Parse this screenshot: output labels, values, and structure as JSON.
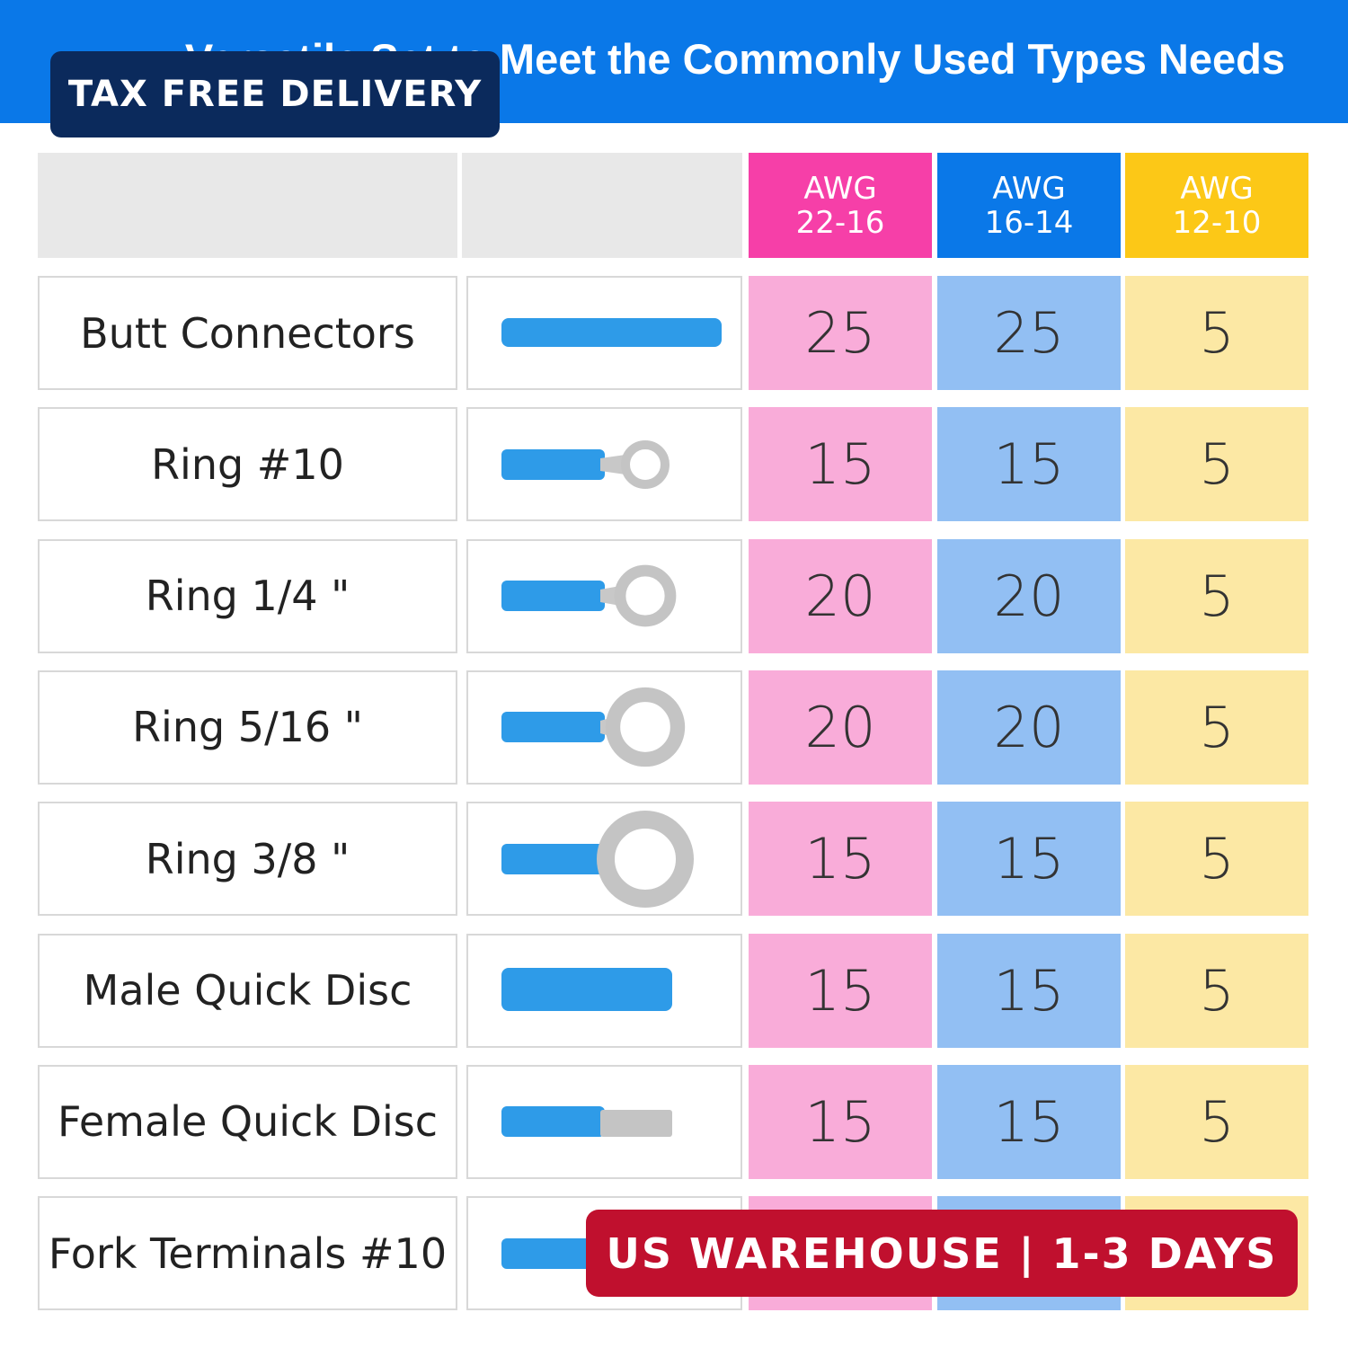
{
  "header": {
    "title": "Versatile Set to Meet the Commonly Used Types Needs",
    "badge": "TAX FREE DELIVERY"
  },
  "table": {
    "columns": [
      {
        "label": "AWG",
        "range": "22-16"
      },
      {
        "label": "AWG",
        "range": "16-14"
      },
      {
        "label": "AWG",
        "range": "12-10"
      }
    ],
    "rows": [
      {
        "name": "Butt Connectors",
        "counts": [
          25,
          25,
          5
        ]
      },
      {
        "name": "Ring #10",
        "counts": [
          15,
          15,
          5
        ]
      },
      {
        "name": "Ring 1/4 \"",
        "counts": [
          20,
          20,
          5
        ]
      },
      {
        "name": "Ring 5/16 \"",
        "counts": [
          20,
          20,
          5
        ]
      },
      {
        "name": "Ring 3/8 \"",
        "counts": [
          15,
          15,
          5
        ]
      },
      {
        "name": "Male Quick Disc",
        "counts": [
          15,
          15,
          5
        ]
      },
      {
        "name": "Female Quick Disc",
        "counts": [
          15,
          15,
          5
        ]
      },
      {
        "name": "Fork Terminals #10"
      }
    ]
  },
  "footer": {
    "badge": "US WAREHOUSE | 1-3 DAYS"
  }
}
